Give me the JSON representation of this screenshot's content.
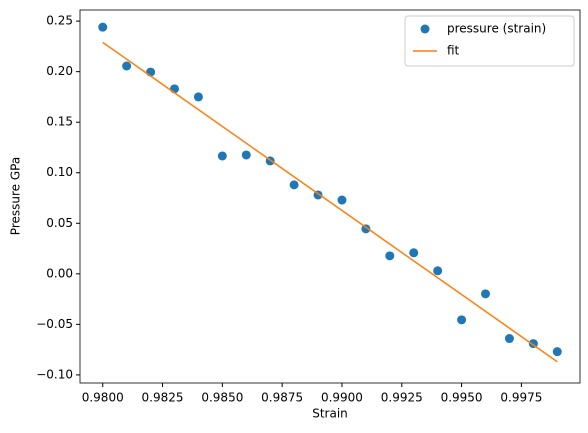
{
  "chart_data": {
    "type": "scatter",
    "x_label": "Strain",
    "y_label": "Pressure GPa",
    "xlim": [
      0.97905,
      0.99995
    ],
    "ylim": [
      -0.108,
      0.261
    ],
    "xticks": [
      {
        "value": 0.98,
        "label": "0.9800"
      },
      {
        "value": 0.9825,
        "label": "0.9825"
      },
      {
        "value": 0.985,
        "label": "0.9850"
      },
      {
        "value": 0.9875,
        "label": "0.9875"
      },
      {
        "value": 0.99,
        "label": "0.9900"
      },
      {
        "value": 0.9925,
        "label": "0.9925"
      },
      {
        "value": 0.995,
        "label": "0.9950"
      },
      {
        "value": 0.9975,
        "label": "0.9975"
      }
    ],
    "yticks": [
      {
        "value": -0.1,
        "label": "−0.10"
      },
      {
        "value": -0.05,
        "label": "−0.05"
      },
      {
        "value": 0,
        "label": "0.00"
      },
      {
        "value": 0.05,
        "label": "0.05"
      },
      {
        "value": 0.1,
        "label": "0.10"
      },
      {
        "value": 0.15,
        "label": "0.15"
      },
      {
        "value": 0.2,
        "label": "0.20"
      },
      {
        "value": 0.25,
        "label": "0.25"
      }
    ],
    "legend": "upper right",
    "series": [
      {
        "name": "pressure (strain)",
        "type": "scatter",
        "color": "#1f77b4",
        "x": [
          0.98,
          0.981,
          0.982,
          0.983,
          0.984,
          0.985,
          0.986,
          0.987,
          0.988,
          0.989,
          0.99,
          0.991,
          0.992,
          0.993,
          0.994,
          0.995,
          0.996,
          0.997,
          0.998,
          0.999
        ],
        "values": [
          0.244,
          0.2056,
          0.1996,
          0.183,
          0.175,
          0.1166,
          0.1176,
          0.1117,
          0.088,
          0.078,
          0.073,
          0.0445,
          0.0178,
          0.0208,
          0.003,
          -0.0455,
          -0.0198,
          -0.064,
          -0.069,
          -0.077
        ]
      },
      {
        "name": "fit",
        "type": "line",
        "color": "#ff7f0e",
        "x": [
          0.98,
          0.999
        ],
        "values": [
          0.229,
          -0.087
        ]
      }
    ]
  }
}
